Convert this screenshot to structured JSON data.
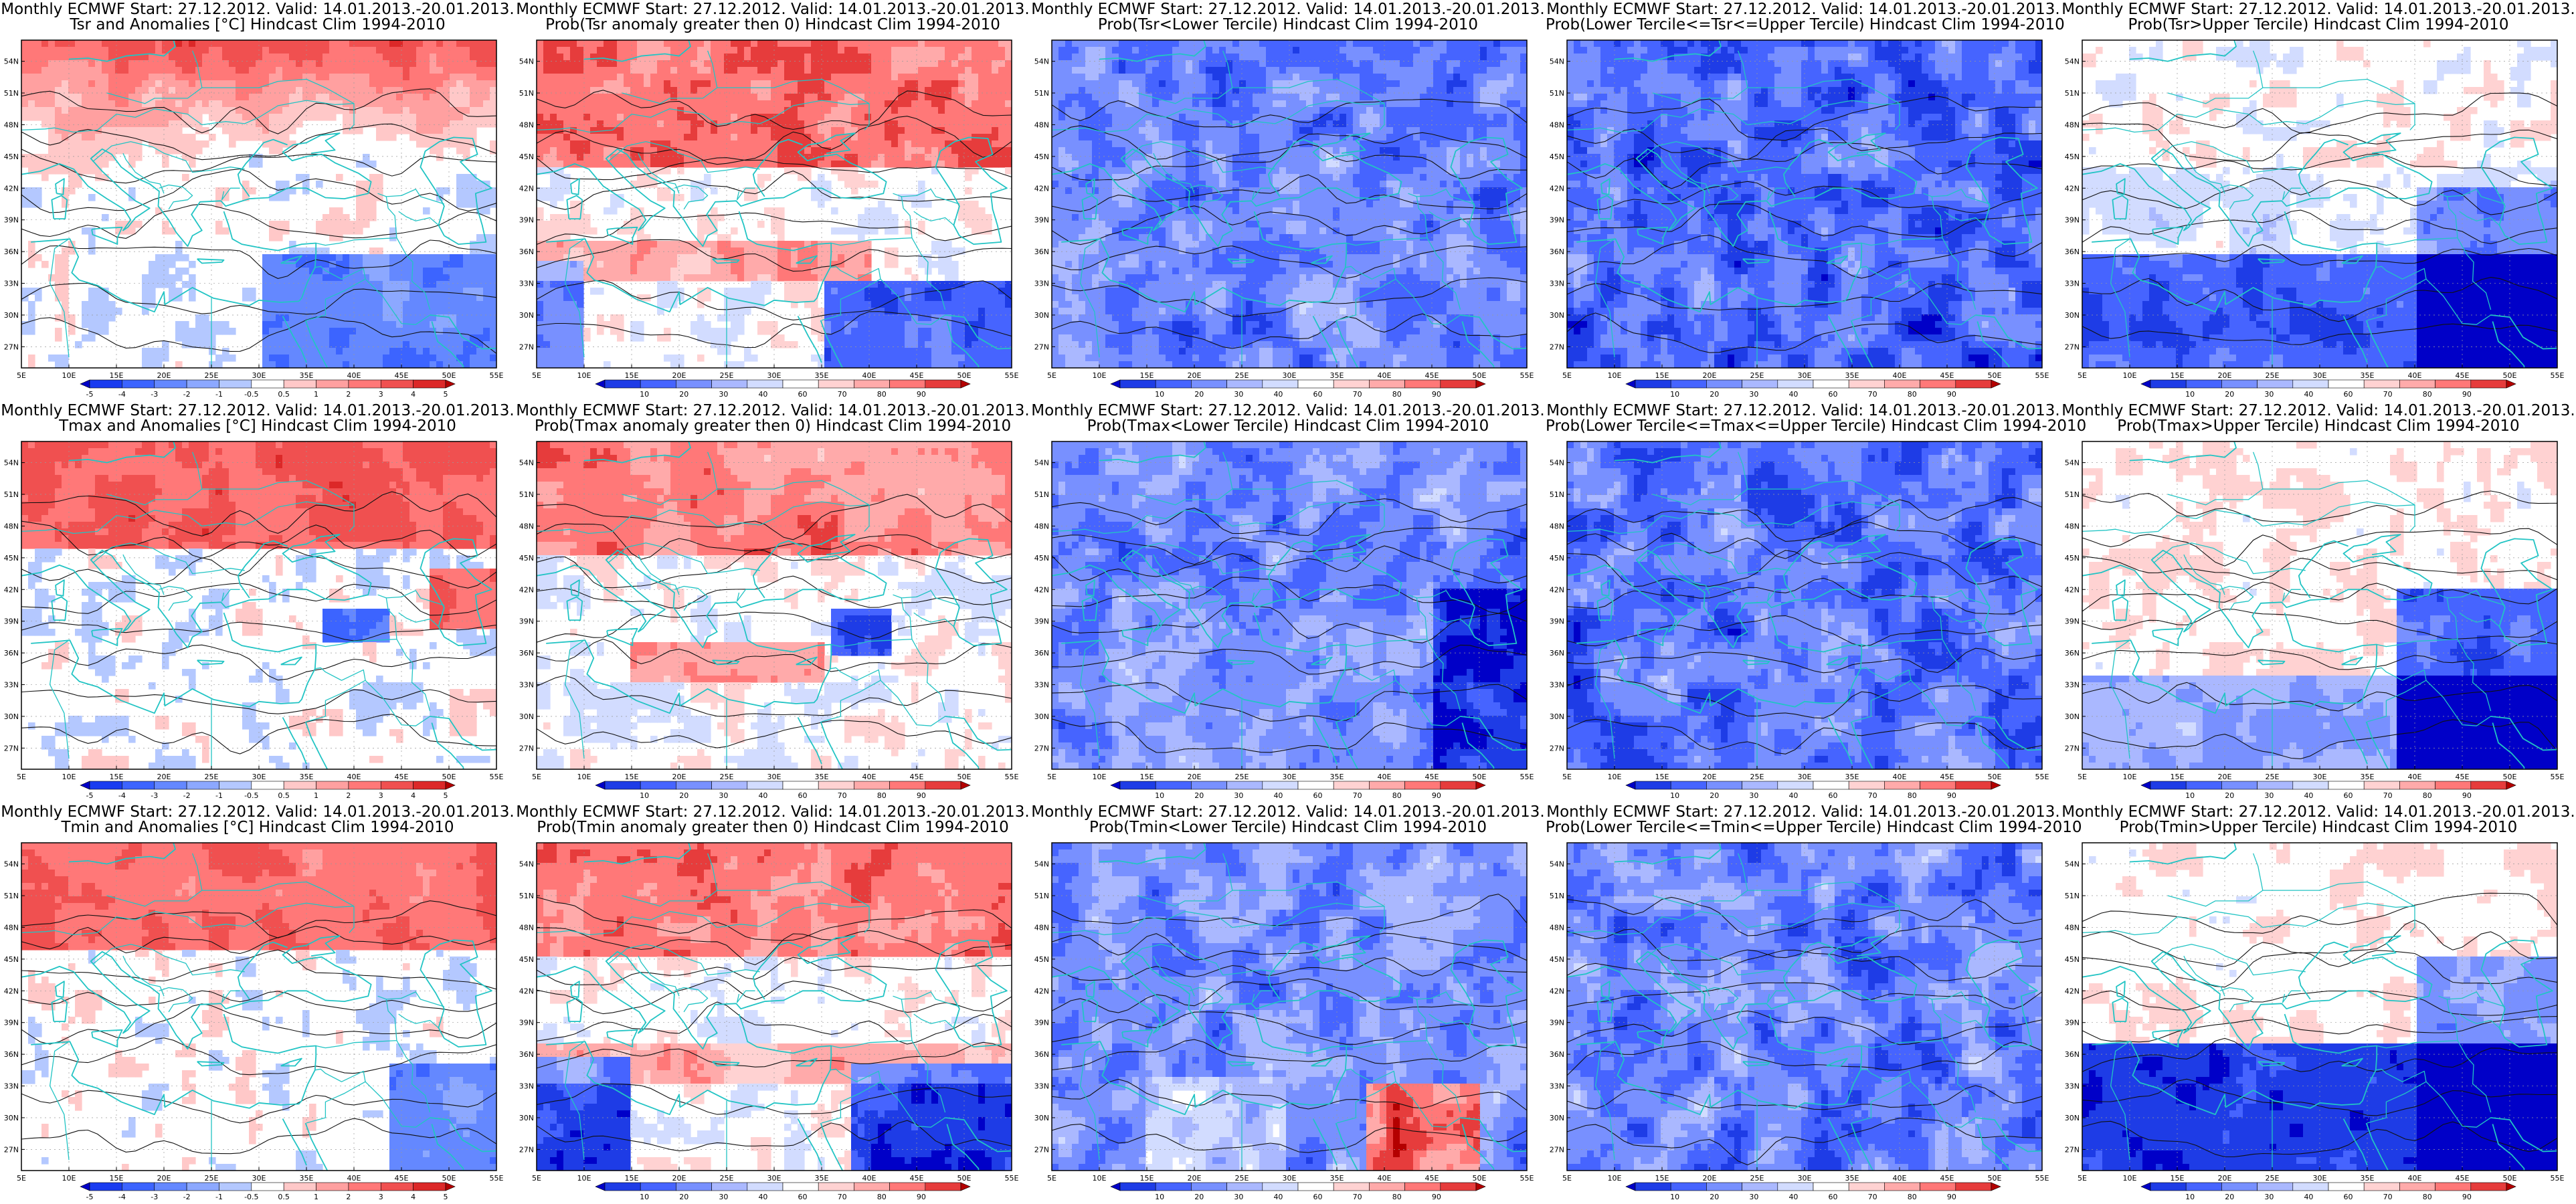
{
  "title_line1": "Monthly ECMWF Start: 27.12.2012. Valid: 14.01.2013.-20.01.2013.",
  "lon_ticks": [
    "5E",
    "10E",
    "15E",
    "20E",
    "25E",
    "30E",
    "35E",
    "40E",
    "45E",
    "50E",
    "55E"
  ],
  "lat_ticks": [
    "54N",
    "51N",
    "48N",
    "45N",
    "42N",
    "39N",
    "36N",
    "33N",
    "30N",
    "27N"
  ],
  "colors": {
    "coast": "#22c4c4",
    "contour": "#111111",
    "anomaly_scale": [
      "#0000c8",
      "#1a3cf0",
      "#3c64ff",
      "#6488ff",
      "#8ca8ff",
      "#b4c8ff",
      "#ffffff",
      "#ffc8c8",
      "#ffa0a0",
      "#ff7878",
      "#f05050",
      "#dc2828",
      "#b40000"
    ],
    "prob_scale": [
      "#0000c8",
      "#1e3ce6",
      "#4664ff",
      "#7890ff",
      "#aab8ff",
      "#d2dcff",
      "#ffffff",
      "#ffd2d2",
      "#ffaaaa",
      "#ff7878",
      "#e63c3c",
      "#b40000"
    ]
  },
  "scales": {
    "anomaly": [
      "-5",
      "-4",
      "-3",
      "-2",
      "-1",
      "-0.5",
      "0.5",
      "1",
      "2",
      "3",
      "4",
      "5"
    ],
    "probability": [
      "10",
      "20",
      "30",
      "40",
      "60",
      "70",
      "80",
      "90"
    ]
  },
  "panels": [
    {
      "row": 0,
      "col": 0,
      "subtitle": "Tsr and Anomalies [°C] Hindcast Clim 1994-2010",
      "scale": "anomaly",
      "pattern": "anom_tsr"
    },
    {
      "row": 0,
      "col": 1,
      "subtitle": "Prob(Tsr anomaly greater then 0) Hindcast Clim 1994-2010",
      "scale": "probability",
      "pattern": "prob_gt0_tsr"
    },
    {
      "row": 0,
      "col": 2,
      "subtitle": "Prob(Tsr<Lower Tercile) Hindcast Clim 1994-2010",
      "scale": "probability",
      "pattern": "lower_tsr"
    },
    {
      "row": 0,
      "col": 3,
      "subtitle": "Prob(Lower Tercile<=Tsr<=Upper Tercile) Hindcast Clim 1994-2010",
      "scale": "probability",
      "pattern": "middle_tsr"
    },
    {
      "row": 0,
      "col": 4,
      "subtitle": "Prob(Tsr>Upper Tercile) Hindcast Clim 1994-2010",
      "scale": "probability",
      "pattern": "upper_tsr"
    },
    {
      "row": 1,
      "col": 0,
      "subtitle": "Tmax and Anomalies [°C] Hindcast Clim 1994-2010",
      "scale": "anomaly",
      "pattern": "anom_tmax"
    },
    {
      "row": 1,
      "col": 1,
      "subtitle": "Prob(Tmax anomaly greater then 0) Hindcast Clim 1994-2010",
      "scale": "probability",
      "pattern": "prob_gt0_tmax"
    },
    {
      "row": 1,
      "col": 2,
      "subtitle": "Prob(Tmax<Lower Tercile) Hindcast Clim 1994-2010",
      "scale": "probability",
      "pattern": "lower_tmax"
    },
    {
      "row": 1,
      "col": 3,
      "subtitle": "Prob(Lower Tercile<=Tmax<=Upper Tercile) Hindcast Clim 1994-2010",
      "scale": "probability",
      "pattern": "middle_tmax"
    },
    {
      "row": 1,
      "col": 4,
      "subtitle": "Prob(Tmax>Upper Tercile) Hindcast Clim 1994-2010",
      "scale": "probability",
      "pattern": "upper_tmax"
    },
    {
      "row": 2,
      "col": 0,
      "subtitle": "Tmin and Anomalies [°C] Hindcast Clim 1994-2010",
      "scale": "anomaly",
      "pattern": "anom_tmin"
    },
    {
      "row": 2,
      "col": 1,
      "subtitle": "Prob(Tmin anomaly greater then 0) Hindcast Clim 1994-2010",
      "scale": "probability",
      "pattern": "prob_gt0_tmin"
    },
    {
      "row": 2,
      "col": 2,
      "subtitle": "Prob(Tmin<Lower Tercile) Hindcast Clim 1994-2010",
      "scale": "probability",
      "pattern": "lower_tmin"
    },
    {
      "row": 2,
      "col": 3,
      "subtitle": "Prob(Lower Tercile<=Tmin<=Upper Tercile) Hindcast Clim 1994-2010",
      "scale": "probability",
      "pattern": "middle_tmin"
    },
    {
      "row": 2,
      "col": 4,
      "subtitle": "Prob(Tmin>Upper Tercile) Hindcast Clim 1994-2010",
      "scale": "probability",
      "pattern": "upper_tmin"
    }
  ]
}
